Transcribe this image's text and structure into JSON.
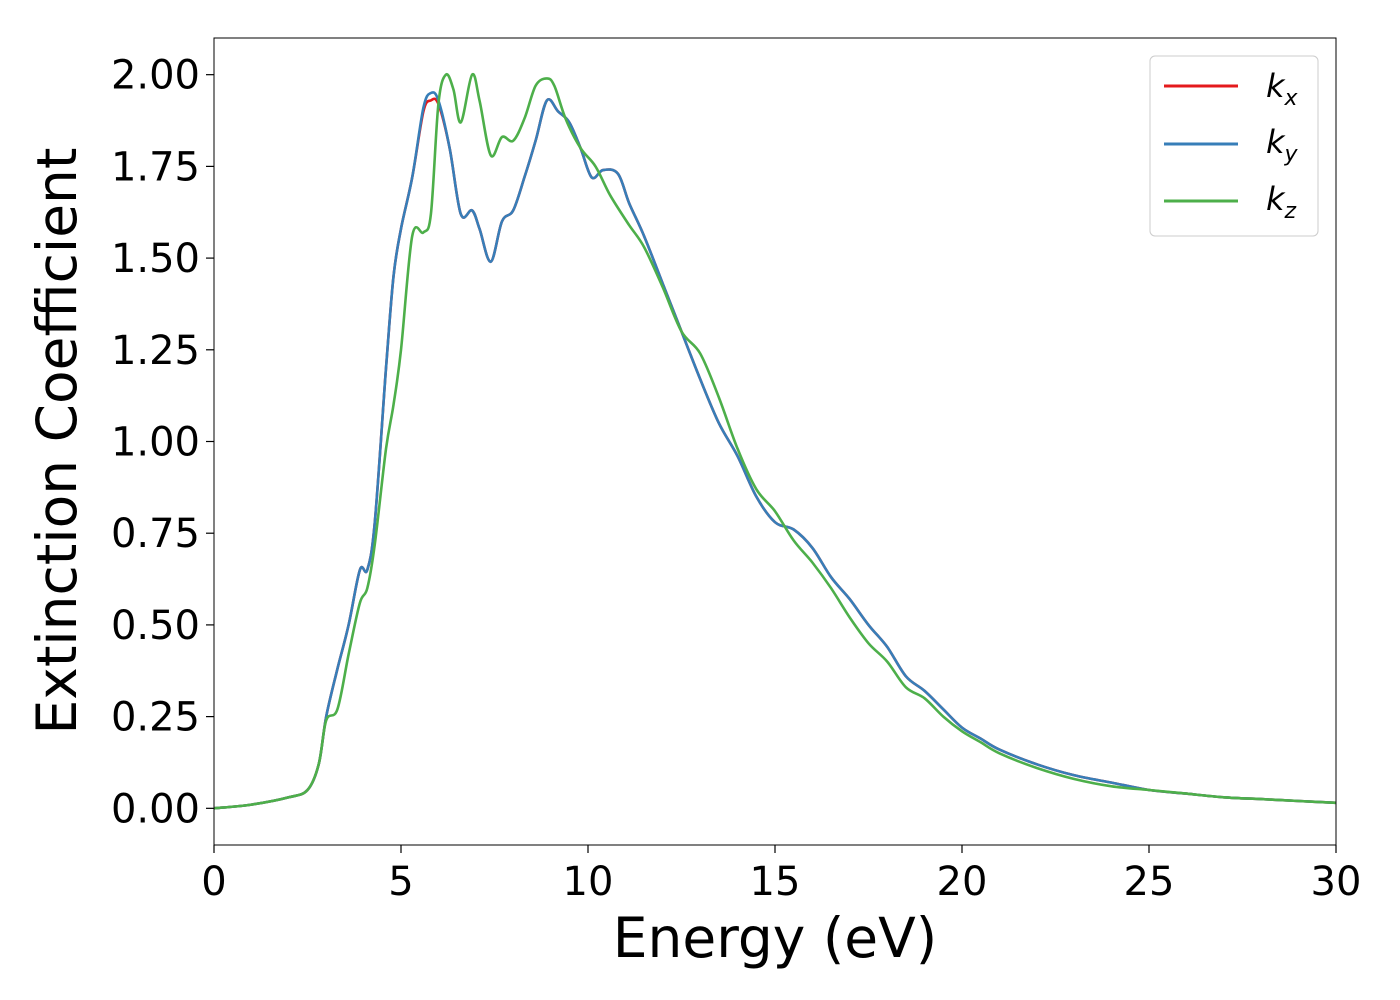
{
  "chart_data": {
    "type": "line",
    "title": "",
    "xlabel": "Energy (eV)",
    "ylabel": "Extinction Coefficient",
    "xlim": [
      0,
      30
    ],
    "ylim": [
      -0.1,
      2.1
    ],
    "xticks": [
      0,
      5,
      10,
      15,
      20,
      25,
      30
    ],
    "xtick_labels": [
      "0",
      "5",
      "10",
      "15",
      "20",
      "25",
      "30"
    ],
    "yticks": [
      0.0,
      0.25,
      0.5,
      0.75,
      1.0,
      1.25,
      1.5,
      1.75,
      2.0
    ],
    "ytick_labels": [
      "0.00",
      "0.25",
      "0.50",
      "0.75",
      "1.00",
      "1.25",
      "1.50",
      "1.75",
      "2.00"
    ],
    "grid": false,
    "legend_position": "top-right",
    "legend": {
      "kx": {
        "base": "k",
        "sub": "x"
      },
      "ky": {
        "base": "k",
        "sub": "y"
      },
      "kz": {
        "base": "k",
        "sub": "z"
      }
    },
    "series": [
      {
        "key": "kx",
        "color": "#e41a1c",
        "points": [
          [
            0,
            0
          ],
          [
            1,
            0.01
          ],
          [
            2,
            0.03
          ],
          [
            2.5,
            0.05
          ],
          [
            2.8,
            0.12
          ],
          [
            3.0,
            0.25
          ],
          [
            3.3,
            0.38
          ],
          [
            3.6,
            0.5
          ],
          [
            3.9,
            0.65
          ],
          [
            4.1,
            0.65
          ],
          [
            4.3,
            0.78
          ],
          [
            4.6,
            1.2
          ],
          [
            4.8,
            1.45
          ],
          [
            5.0,
            1.58
          ],
          [
            5.3,
            1.72
          ],
          [
            5.6,
            1.9
          ],
          [
            5.8,
            1.93
          ],
          [
            6.0,
            1.92
          ],
          [
            6.3,
            1.8
          ],
          [
            6.6,
            1.62
          ],
          [
            6.9,
            1.63
          ],
          [
            7.1,
            1.58
          ],
          [
            7.4,
            1.49
          ],
          [
            7.7,
            1.6
          ],
          [
            8.0,
            1.63
          ],
          [
            8.3,
            1.72
          ],
          [
            8.6,
            1.82
          ],
          [
            8.9,
            1.93
          ],
          [
            9.2,
            1.9
          ],
          [
            9.5,
            1.87
          ],
          [
            9.8,
            1.8
          ],
          [
            10.1,
            1.72
          ],
          [
            10.4,
            1.74
          ],
          [
            10.8,
            1.73
          ],
          [
            11.1,
            1.65
          ],
          [
            11.5,
            1.56
          ],
          [
            12,
            1.43
          ],
          [
            12.5,
            1.3
          ],
          [
            13,
            1.17
          ],
          [
            13.5,
            1.05
          ],
          [
            14,
            0.96
          ],
          [
            14.5,
            0.85
          ],
          [
            15,
            0.78
          ],
          [
            15.5,
            0.76
          ],
          [
            16,
            0.71
          ],
          [
            16.5,
            0.63
          ],
          [
            17,
            0.57
          ],
          [
            17.5,
            0.5
          ],
          [
            18,
            0.44
          ],
          [
            18.5,
            0.36
          ],
          [
            19,
            0.32
          ],
          [
            19.5,
            0.27
          ],
          [
            20,
            0.22
          ],
          [
            20.5,
            0.19
          ],
          [
            21,
            0.16
          ],
          [
            22,
            0.12
          ],
          [
            23,
            0.09
          ],
          [
            24,
            0.07
          ],
          [
            25,
            0.05
          ],
          [
            26,
            0.04
          ],
          [
            27,
            0.03
          ],
          [
            28,
            0.025
          ],
          [
            29,
            0.02
          ],
          [
            30,
            0.015
          ]
        ]
      },
      {
        "key": "ky",
        "color": "#377eb8",
        "points": [
          [
            0,
            0
          ],
          [
            1,
            0.01
          ],
          [
            2,
            0.03
          ],
          [
            2.5,
            0.05
          ],
          [
            2.8,
            0.12
          ],
          [
            3.0,
            0.25
          ],
          [
            3.3,
            0.38
          ],
          [
            3.6,
            0.5
          ],
          [
            3.9,
            0.65
          ],
          [
            4.1,
            0.65
          ],
          [
            4.3,
            0.78
          ],
          [
            4.6,
            1.2
          ],
          [
            4.8,
            1.45
          ],
          [
            5.0,
            1.58
          ],
          [
            5.3,
            1.72
          ],
          [
            5.6,
            1.91
          ],
          [
            5.8,
            1.95
          ],
          [
            6.0,
            1.93
          ],
          [
            6.3,
            1.8
          ],
          [
            6.6,
            1.62
          ],
          [
            6.9,
            1.63
          ],
          [
            7.1,
            1.58
          ],
          [
            7.4,
            1.49
          ],
          [
            7.7,
            1.6
          ],
          [
            8.0,
            1.63
          ],
          [
            8.3,
            1.72
          ],
          [
            8.6,
            1.82
          ],
          [
            8.9,
            1.93
          ],
          [
            9.2,
            1.9
          ],
          [
            9.5,
            1.87
          ],
          [
            9.8,
            1.8
          ],
          [
            10.1,
            1.72
          ],
          [
            10.4,
            1.74
          ],
          [
            10.8,
            1.73
          ],
          [
            11.1,
            1.65
          ],
          [
            11.5,
            1.56
          ],
          [
            12,
            1.43
          ],
          [
            12.5,
            1.3
          ],
          [
            13,
            1.17
          ],
          [
            13.5,
            1.05
          ],
          [
            14,
            0.96
          ],
          [
            14.5,
            0.85
          ],
          [
            15,
            0.78
          ],
          [
            15.5,
            0.76
          ],
          [
            16,
            0.71
          ],
          [
            16.5,
            0.63
          ],
          [
            17,
            0.57
          ],
          [
            17.5,
            0.5
          ],
          [
            18,
            0.44
          ],
          [
            18.5,
            0.36
          ],
          [
            19,
            0.32
          ],
          [
            19.5,
            0.27
          ],
          [
            20,
            0.22
          ],
          [
            20.5,
            0.19
          ],
          [
            21,
            0.16
          ],
          [
            22,
            0.12
          ],
          [
            23,
            0.09
          ],
          [
            24,
            0.07
          ],
          [
            25,
            0.05
          ],
          [
            26,
            0.04
          ],
          [
            27,
            0.03
          ],
          [
            28,
            0.025
          ],
          [
            29,
            0.02
          ],
          [
            30,
            0.015
          ]
        ]
      },
      {
        "key": "kz",
        "color": "#4daf4a",
        "points": [
          [
            0,
            0
          ],
          [
            1,
            0.01
          ],
          [
            2,
            0.03
          ],
          [
            2.5,
            0.05
          ],
          [
            2.8,
            0.12
          ],
          [
            3.0,
            0.24
          ],
          [
            3.3,
            0.27
          ],
          [
            3.6,
            0.42
          ],
          [
            3.9,
            0.56
          ],
          [
            4.1,
            0.6
          ],
          [
            4.3,
            0.72
          ],
          [
            4.6,
            0.98
          ],
          [
            4.8,
            1.1
          ],
          [
            5.0,
            1.25
          ],
          [
            5.3,
            1.56
          ],
          [
            5.6,
            1.57
          ],
          [
            5.8,
            1.62
          ],
          [
            6.0,
            1.92
          ],
          [
            6.2,
            2.0
          ],
          [
            6.4,
            1.96
          ],
          [
            6.6,
            1.87
          ],
          [
            6.9,
            2.0
          ],
          [
            7.1,
            1.93
          ],
          [
            7.4,
            1.78
          ],
          [
            7.7,
            1.83
          ],
          [
            8.0,
            1.82
          ],
          [
            8.3,
            1.88
          ],
          [
            8.6,
            1.97
          ],
          [
            8.9,
            1.99
          ],
          [
            9.1,
            1.97
          ],
          [
            9.4,
            1.88
          ],
          [
            9.8,
            1.8
          ],
          [
            10.2,
            1.75
          ],
          [
            10.6,
            1.67
          ],
          [
            11.1,
            1.59
          ],
          [
            11.5,
            1.53
          ],
          [
            12,
            1.42
          ],
          [
            12.5,
            1.3
          ],
          [
            13,
            1.24
          ],
          [
            13.5,
            1.12
          ],
          [
            14,
            0.98
          ],
          [
            14.5,
            0.87
          ],
          [
            15,
            0.81
          ],
          [
            15.5,
            0.73
          ],
          [
            16,
            0.67
          ],
          [
            16.5,
            0.6
          ],
          [
            17,
            0.52
          ],
          [
            17.5,
            0.45
          ],
          [
            18,
            0.4
          ],
          [
            18.5,
            0.33
          ],
          [
            19,
            0.3
          ],
          [
            19.5,
            0.25
          ],
          [
            20,
            0.21
          ],
          [
            20.5,
            0.18
          ],
          [
            21,
            0.15
          ],
          [
            22,
            0.11
          ],
          [
            23,
            0.08
          ],
          [
            24,
            0.06
          ],
          [
            25,
            0.05
          ],
          [
            26,
            0.04
          ],
          [
            27,
            0.03
          ],
          [
            28,
            0.025
          ],
          [
            29,
            0.02
          ],
          [
            30,
            0.015
          ]
        ]
      }
    ]
  }
}
